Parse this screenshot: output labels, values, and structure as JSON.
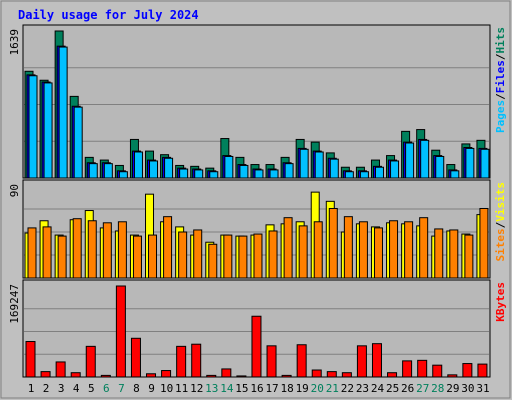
{
  "title": "Daily usage for July 2024",
  "colors": {
    "background": "#c0c0c0",
    "panel": "#b8b8b8",
    "title_text": "#0000ff",
    "grid": "#787878",
    "hits": "#00805c",
    "files": "#00c0ff",
    "sites": "#ff8000",
    "visits": "#ffff00",
    "kbytes": "#ff0000",
    "pages": "#00e0ff",
    "weekend_label": "#00805c",
    "weekday_label": "#000000"
  },
  "chart_data": [
    {
      "type": "bar",
      "panel": "top",
      "ymax_label": "1639",
      "ylim": [
        0,
        1639
      ],
      "side_labels": [
        {
          "text": "Pages",
          "color": "#00c0ff"
        },
        {
          "text": "/",
          "color": "#000000"
        },
        {
          "text": "Files",
          "color": "#0000ff"
        },
        {
          "text": "/",
          "color": "#000000"
        },
        {
          "text": "Hits",
          "color": "#00805c"
        }
      ],
      "categories": [
        "1",
        "2",
        "3",
        "4",
        "5",
        "6",
        "7",
        "8",
        "9",
        "10",
        "11",
        "12",
        "13",
        "14",
        "15",
        "16",
        "17",
        "18",
        "19",
        "20",
        "21",
        "22",
        "23",
        "24",
        "25",
        "26",
        "27",
        "28",
        "29",
        "30",
        "31"
      ],
      "series": [
        {
          "name": "Hits",
          "color": "#00805c",
          "values": [
            1190,
            1090,
            1639,
            910,
            230,
            200,
            140,
            430,
            300,
            260,
            140,
            130,
            110,
            440,
            230,
            150,
            150,
            230,
            430,
            400,
            280,
            120,
            120,
            200,
            250,
            520,
            540,
            310,
            150,
            380,
            420
          ]
        },
        {
          "name": "Files",
          "color": "#0000ff",
          "values": [
            1150,
            1070,
            1470,
            800,
            170,
            170,
            80,
            300,
            200,
            230,
            110,
            100,
            80,
            250,
            150,
            100,
            100,
            170,
            330,
            300,
            220,
            80,
            80,
            130,
            200,
            400,
            430,
            250,
            90,
            340,
            330
          ]
        },
        {
          "name": "Pages",
          "color": "#00c0ff",
          "values": [
            1140,
            1060,
            1460,
            790,
            160,
            160,
            70,
            290,
            190,
            220,
            100,
            90,
            70,
            240,
            140,
            90,
            90,
            160,
            320,
            290,
            210,
            70,
            70,
            120,
            190,
            390,
            420,
            240,
            80,
            330,
            320
          ]
        }
      ]
    },
    {
      "type": "bar",
      "panel": "middle",
      "ymax_label": "90",
      "ylim": [
        0,
        90
      ],
      "side_labels": [
        {
          "text": "Sites",
          "color": "#ff8000"
        },
        {
          "text": "/",
          "color": "#000000"
        },
        {
          "text": "Visits",
          "color": "#ffff00"
        }
      ],
      "categories": [
        "1",
        "2",
        "3",
        "4",
        "5",
        "6",
        "7",
        "8",
        "9",
        "10",
        "11",
        "12",
        "13",
        "14",
        "15",
        "16",
        "17",
        "18",
        "19",
        "20",
        "21",
        "22",
        "23",
        "24",
        "25",
        "26",
        "27",
        "28",
        "29",
        "30",
        "31"
      ],
      "series": [
        {
          "name": "Visits",
          "color": "#ffff00",
          "values": [
            44,
            56,
            42,
            57,
            66,
            49,
            46,
            42,
            82,
            55,
            50,
            42,
            35,
            42,
            41,
            42,
            52,
            53,
            55,
            84,
            75,
            45,
            53,
            50,
            54,
            53,
            51,
            41,
            46,
            43,
            62
          ]
        },
        {
          "name": "Sites",
          "color": "#ff8000",
          "values": [
            49,
            50,
            41,
            58,
            56,
            54,
            55,
            41,
            42,
            60,
            45,
            47,
            33,
            42,
            41,
            43,
            46,
            59,
            51,
            55,
            68,
            60,
            55,
            49,
            56,
            55,
            59,
            48,
            47,
            42,
            68
          ]
        }
      ]
    },
    {
      "type": "bar",
      "panel": "bottom",
      "ymax_label": "169247",
      "ylim": [
        0,
        169247
      ],
      "side_labels": [
        {
          "text": "KBytes",
          "color": "#ff0000"
        }
      ],
      "categories": [
        "1",
        "2",
        "3",
        "4",
        "5",
        "6",
        "7",
        "8",
        "9",
        "10",
        "11",
        "12",
        "13",
        "14",
        "15",
        "16",
        "17",
        "18",
        "19",
        "20",
        "21",
        "22",
        "23",
        "24",
        "25",
        "26",
        "27",
        "28",
        "29",
        "30",
        "31"
      ],
      "series": [
        {
          "name": "KBytes",
          "color": "#ff0000",
          "values": [
            66000,
            10000,
            28000,
            8000,
            57000,
            3000,
            169247,
            72000,
            6000,
            12000,
            57000,
            61000,
            3000,
            15000,
            2000,
            113000,
            58000,
            3000,
            60000,
            13000,
            10000,
            8000,
            58000,
            62000,
            8000,
            30000,
            31000,
            22000,
            4000,
            25000,
            24000
          ]
        }
      ]
    }
  ],
  "x_labels": [
    {
      "text": "1",
      "weekend": false
    },
    {
      "text": "2",
      "weekend": false
    },
    {
      "text": "3",
      "weekend": false
    },
    {
      "text": "4",
      "weekend": false
    },
    {
      "text": "5",
      "weekend": false
    },
    {
      "text": "6",
      "weekend": true
    },
    {
      "text": "7",
      "weekend": true
    },
    {
      "text": "8",
      "weekend": false
    },
    {
      "text": "9",
      "weekend": false
    },
    {
      "text": "10",
      "weekend": false
    },
    {
      "text": "11",
      "weekend": false
    },
    {
      "text": "12",
      "weekend": false
    },
    {
      "text": "13",
      "weekend": true
    },
    {
      "text": "14",
      "weekend": true
    },
    {
      "text": "15",
      "weekend": false
    },
    {
      "text": "16",
      "weekend": false
    },
    {
      "text": "17",
      "weekend": false
    },
    {
      "text": "18",
      "weekend": false
    },
    {
      "text": "19",
      "weekend": false
    },
    {
      "text": "20",
      "weekend": true
    },
    {
      "text": "21",
      "weekend": true
    },
    {
      "text": "22",
      "weekend": false
    },
    {
      "text": "23",
      "weekend": false
    },
    {
      "text": "24",
      "weekend": false
    },
    {
      "text": "25",
      "weekend": false
    },
    {
      "text": "26",
      "weekend": false
    },
    {
      "text": "27",
      "weekend": true
    },
    {
      "text": "28",
      "weekend": true
    },
    {
      "text": "29",
      "weekend": false
    },
    {
      "text": "30",
      "weekend": false
    },
    {
      "text": "31",
      "weekend": false
    }
  ]
}
